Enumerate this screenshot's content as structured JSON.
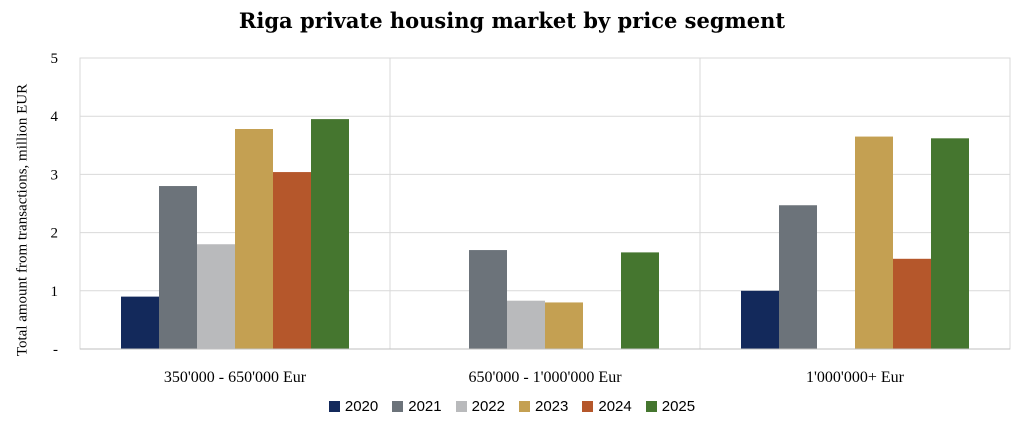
{
  "chart_data": {
    "type": "bar",
    "title": "Riga private housing market by price segment",
    "xlabel": "",
    "ylabel": "Total amount from transactions, million EUR",
    "ylim": [
      0,
      5
    ],
    "yticks": [
      "-",
      "1",
      "2",
      "3",
      "4",
      "5"
    ],
    "grid": true,
    "legend_position": "bottom",
    "categories": [
      "350'000 - 650'000 Eur",
      "650'000 - 1'000'000 Eur",
      "1'000'000+ Eur"
    ],
    "series": [
      {
        "name": "2020",
        "color": "#13295b",
        "values": [
          0.9,
          0,
          1.0
        ]
      },
      {
        "name": "2021",
        "color": "#6c737a",
        "values": [
          2.8,
          1.7,
          2.47
        ]
      },
      {
        "name": "2022",
        "color": "#b9babc",
        "values": [
          1.8,
          0.83,
          0
        ]
      },
      {
        "name": "2023",
        "color": "#c4a052",
        "values": [
          3.78,
          0.8,
          3.65
        ]
      },
      {
        "name": "2024",
        "color": "#b5572b",
        "values": [
          3.04,
          0,
          1.55
        ]
      },
      {
        "name": "2025",
        "color": "#45762f",
        "values": [
          3.95,
          1.66,
          3.62
        ]
      }
    ]
  }
}
